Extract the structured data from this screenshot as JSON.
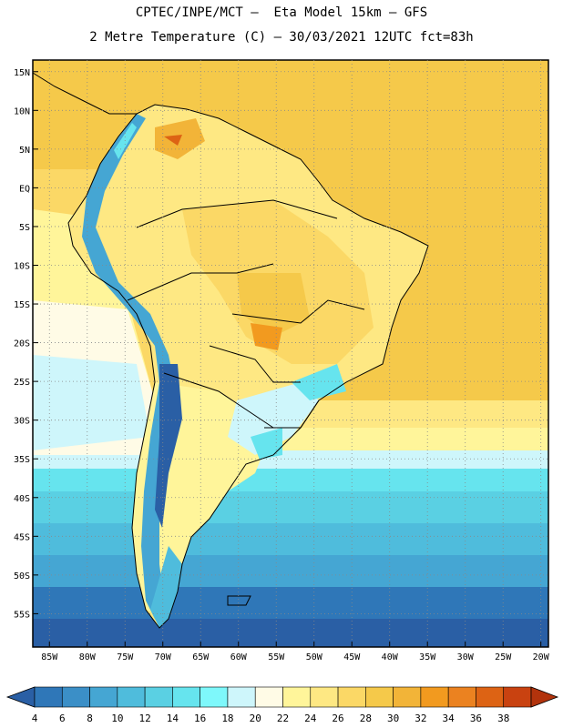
{
  "header": {
    "line1": "CPTEC/INPE/MCT –  Eta Model 15km – GFS",
    "line2": "2 Metre Temperature (C) – 30/03/2021 12UTC fct=83h"
  },
  "map": {
    "lat_labels": [
      "15N",
      "10N",
      "5N",
      "EQ",
      "5S",
      "10S",
      "15S",
      "20S",
      "25S",
      "30S",
      "35S",
      "40S",
      "45S",
      "50S",
      "55S"
    ],
    "lon_labels": [
      "85W",
      "80W",
      "75W",
      "70W",
      "65W",
      "60W",
      "55W",
      "50W",
      "45W",
      "40W",
      "35W",
      "30W",
      "25W",
      "20W"
    ],
    "lon_range": [
      -85,
      -20
    ],
    "lat_range": [
      -58,
      16
    ],
    "gridlines": "dotted"
  },
  "colorbar": {
    "ticks": [
      "4",
      "6",
      "8",
      "10",
      "12",
      "14",
      "16",
      "18",
      "20",
      "22",
      "24",
      "26",
      "28",
      "30",
      "32",
      "34",
      "36",
      "38"
    ],
    "colors": [
      "#2a5fa5",
      "#2f77b8",
      "#3b8fc7",
      "#45a6d3",
      "#4fbcdc",
      "#5ad0e3",
      "#66e4ee",
      "#7ef8fb",
      "#cef6fb",
      "#fffbe6",
      "#fff59a",
      "#fee883",
      "#fbd866",
      "#f5c94a",
      "#f2b438",
      "#f29a1f",
      "#eb8220",
      "#dd6314",
      "#c94210",
      "#b2330c"
    ]
  }
}
